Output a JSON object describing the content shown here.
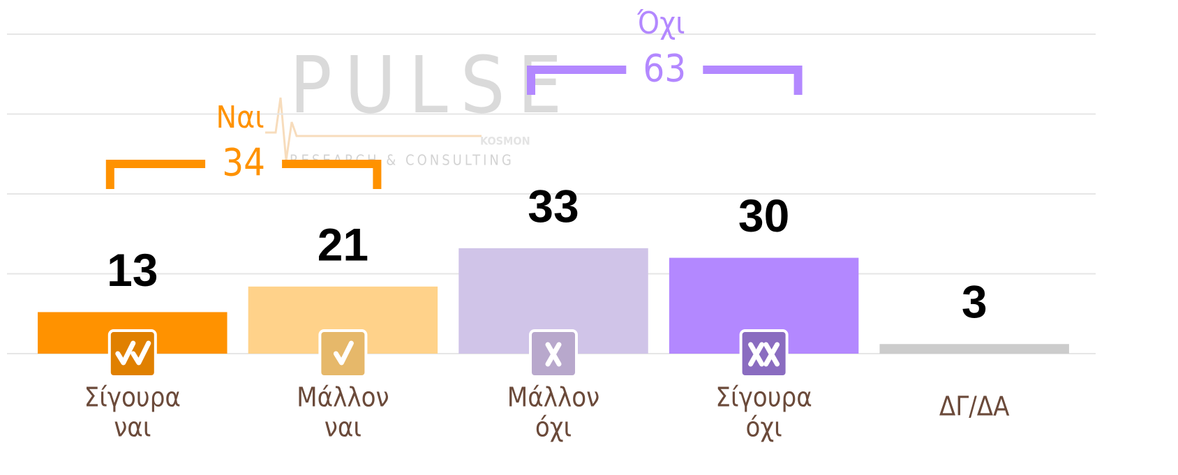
{
  "chart_data": {
    "type": "bar",
    "categories": [
      [
        "Σίγουρα",
        "ναι"
      ],
      [
        "Μάλλον",
        "ναι"
      ],
      [
        "Μάλλον",
        "όχι"
      ],
      [
        "Σίγουρα",
        "όχι"
      ],
      [
        "ΔΓ/ΔΑ"
      ]
    ],
    "values": [
      13,
      21,
      33,
      30,
      3
    ],
    "colors": [
      "#ff9200",
      "#ffd28a",
      "#d0c4e8",
      "#b388ff",
      "#cccccc"
    ],
    "ylim": [
      0,
      100
    ],
    "yticks": [
      0,
      25,
      50,
      75,
      100
    ],
    "grid": true,
    "annotations": [
      {
        "label": "Ναι",
        "value": 34,
        "color": "#ff9200",
        "span": [
          0,
          1
        ]
      },
      {
        "label": "Όχι",
        "value": 63,
        "color": "#b388ff",
        "span": [
          2,
          3
        ]
      }
    ],
    "watermark": {
      "title": "PULSE",
      "subtitle": "RESEARCH & CONSULTING",
      "mark": "KOSMON"
    }
  }
}
